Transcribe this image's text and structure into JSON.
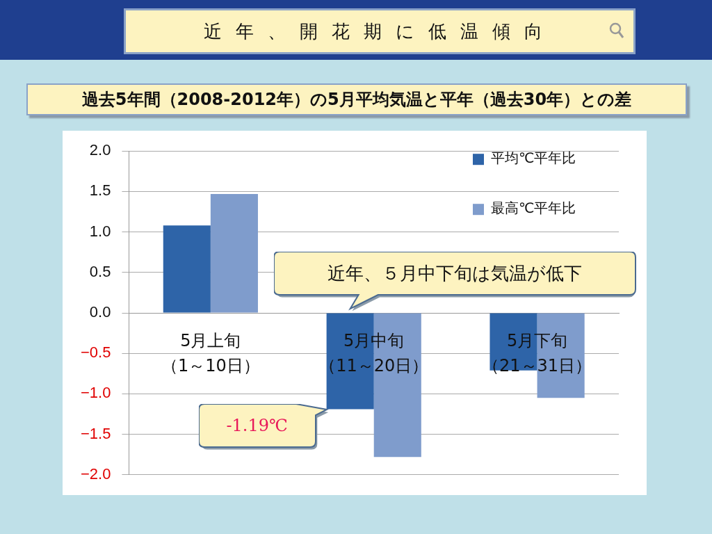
{
  "chart_data": {
    "type": "bar",
    "title": "近年、開花期に低温傾向",
    "subtitle": "過去5年間（2008-2012年）の5月平均気温と平年（過去30年）との差",
    "categories": [
      "5月上旬（1～10日）",
      "5月中旬（11～20日）",
      "5月下旬（21～31日）"
    ],
    "series": [
      {
        "name": "平均℃平年比",
        "color": "#2e64a8",
        "values": [
          1.08,
          -1.19,
          -0.71
        ]
      },
      {
        "name": "最高℃平年比",
        "color": "#7f9ccc",
        "values": [
          1.47,
          -1.78,
          -1.05
        ]
      }
    ],
    "ylim": [
      -2,
      2
    ],
    "yticks": [
      {
        "value": 2,
        "label": "2.0"
      },
      {
        "value": 1.5,
        "label": "1.5"
      },
      {
        "value": 1,
        "label": "1.0"
      },
      {
        "value": 0.5,
        "label": "0.5"
      },
      {
        "value": 0,
        "label": "0.0"
      },
      {
        "value": -0.5,
        "label": "−0.5"
      },
      {
        "value": -1,
        "label": "−1.0"
      },
      {
        "value": -1.5,
        "label": "−1.5"
      },
      {
        "value": -2,
        "label": "−2.0"
      }
    ],
    "grid": "y",
    "legend": "top right",
    "annotations": [
      "近年、５月中下旬は気温が低下",
      "-1.19℃"
    ]
  }
}
